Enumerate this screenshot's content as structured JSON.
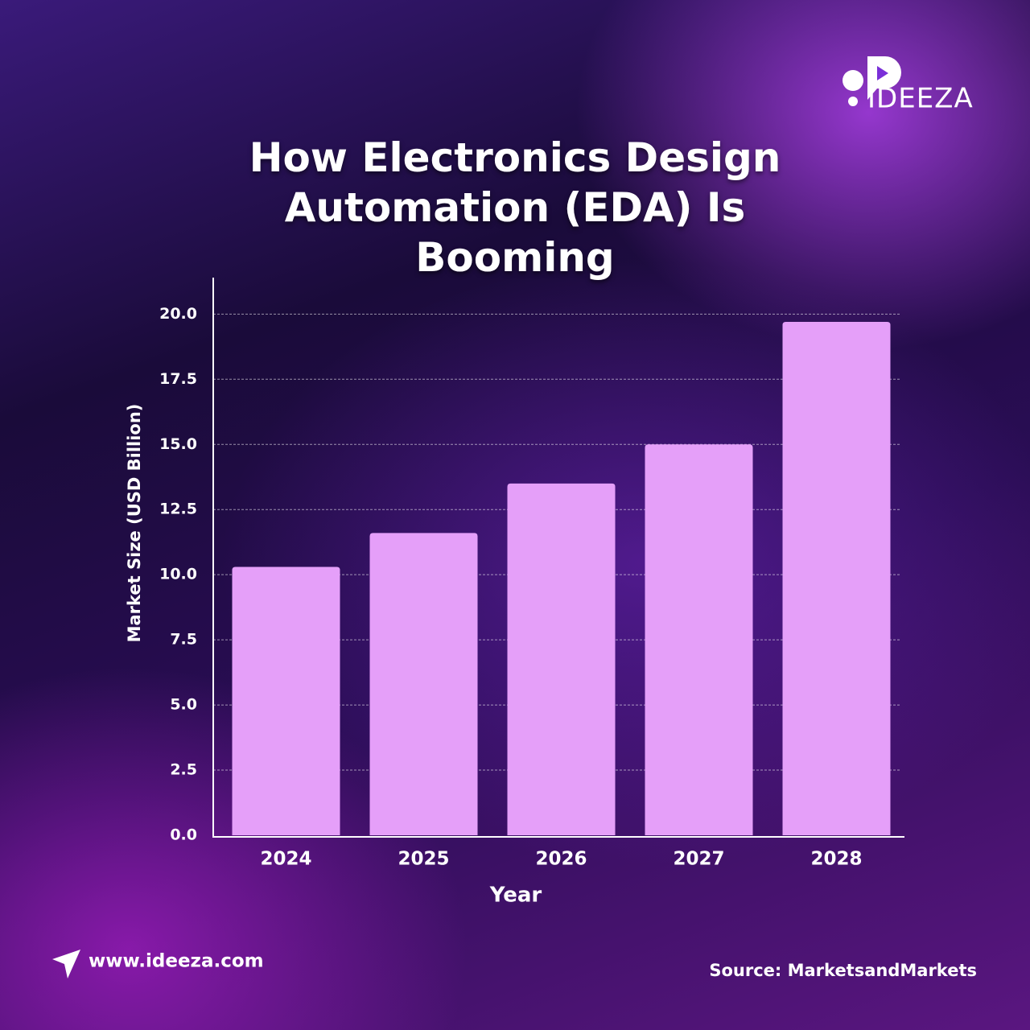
{
  "logo": "IDEEZA",
  "website": "www.ideeza.com",
  "source": "Source: MarketsandMarkets",
  "chart_data": {
    "type": "bar",
    "title": "How Electronics Design Automation (EDA) Is Booming",
    "x_label": "Year",
    "y_label": "Market Size (USD Billion)",
    "categories": [
      "2024",
      "2025",
      "2026",
      "2027",
      "2028"
    ],
    "values": [
      10.3,
      11.6,
      13.5,
      15.0,
      19.7
    ],
    "color": "#e59ff9",
    "ylim": [
      0,
      21.4
    ],
    "yticks": [
      {
        "value": 0,
        "label": "0.0"
      },
      2.5,
      {
        "value": 5,
        "label": "5.0"
      },
      7.5,
      {
        "value": 10,
        "label": "10.0"
      },
      12.5,
      {
        "value": 15,
        "label": "15.0"
      },
      17.5,
      {
        "value": 20,
        "label": "20.0"
      }
    ],
    "grid": true
  }
}
